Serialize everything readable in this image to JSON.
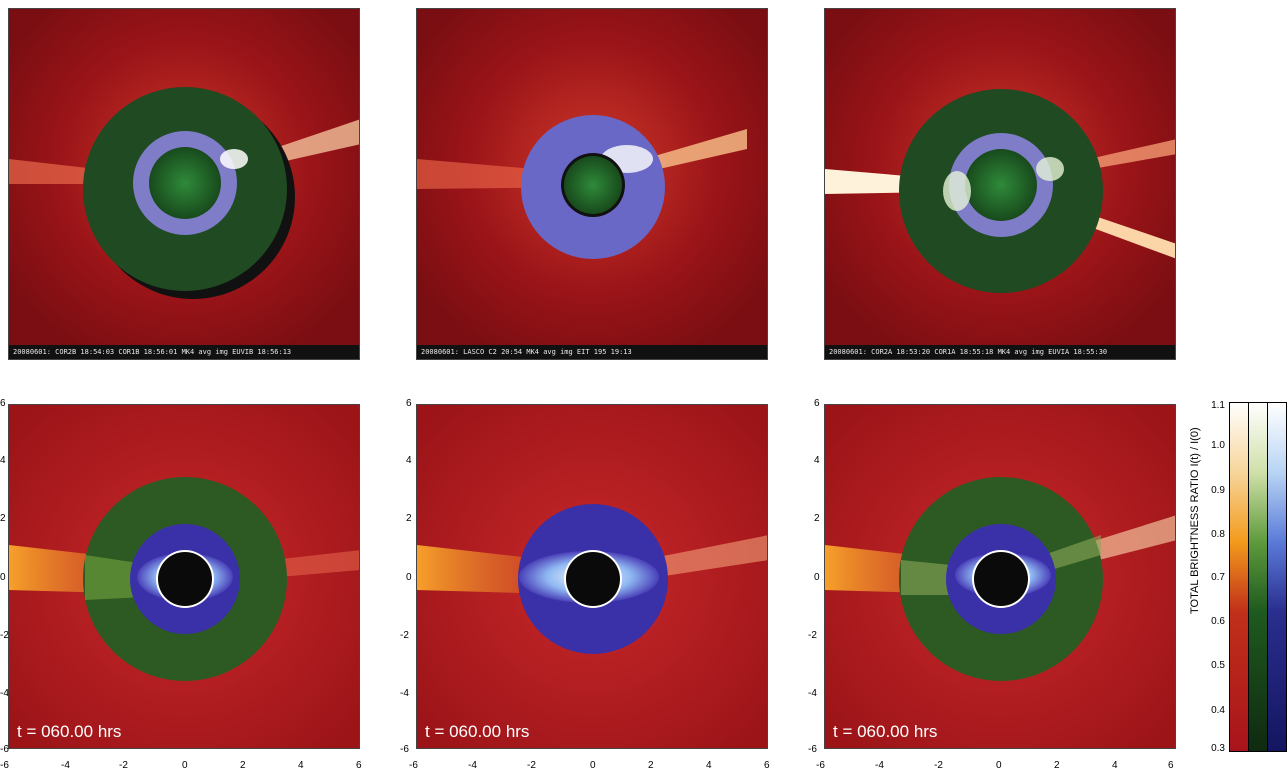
{
  "observations": [
    {
      "caption": "20080601: COR2B 18:54:03   COR1B 18:56:01   MK4 avg img   EUVIB 18:56:13"
    },
    {
      "caption": "20080601: LASCO C2 20:54   MK4 avg img   EIT 195 19:13"
    },
    {
      "caption": "20080601: COR2A 18:53:20   COR1A 18:55:18   MK4 avg img   EUVIA 18:55:30"
    }
  ],
  "simulations": [
    {
      "time_label": "t = 060.00 hrs"
    },
    {
      "time_label": "t = 060.00 hrs"
    },
    {
      "time_label": "t = 060.00 hrs"
    }
  ],
  "axis": {
    "ticks": [
      "-6",
      "-4",
      "-2",
      "0",
      "2",
      "4",
      "6"
    ],
    "yticks": [
      "6",
      "4",
      "2",
      "0",
      "-2",
      "-4",
      "-6"
    ]
  },
  "colorbar": {
    "label": "TOTAL BRIGHTNESS RATIO   I(t) / I(0)",
    "ticks": [
      "1.1",
      "1.0",
      "0.9",
      "0.8",
      "0.7",
      "0.6",
      "0.5",
      "0.4",
      "0.3"
    ],
    "colors": {
      "red": "#a8141b",
      "orange": "#f39a1c",
      "green": "#1f5a1f",
      "blue": "#2a2e8e",
      "white": "#ffffff"
    }
  }
}
